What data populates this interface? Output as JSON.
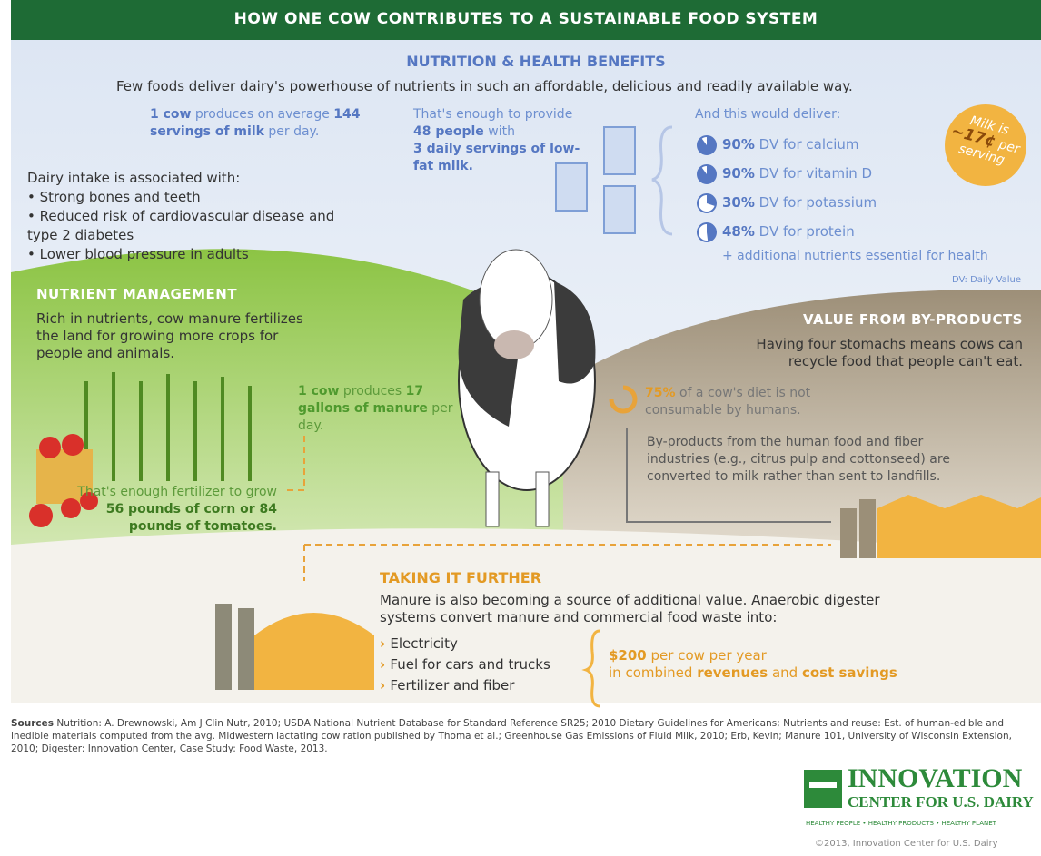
{
  "header": {
    "title": "HOW ONE COW CONTRIBUTES TO A SUSTAINABLE FOOD SYSTEM"
  },
  "nutrition": {
    "title": "NUTRITION & HEALTH BENEFITS",
    "intro": "Few foods deliver dairy's powerhouse of nutrients in such an affordable, delicious and readily available way.",
    "production": {
      "lead": "1 cow",
      "line1": " produces on average",
      "amount": "144 servings of milk",
      "line2": " per day."
    },
    "provide": {
      "line1": "That's enough to provide",
      "people": "48 people",
      "with": " with",
      "servings": "3 daily servings of low-fat milk."
    },
    "deliver": {
      "title": "And this would deliver:",
      "nutrients": [
        {
          "value": 90,
          "label": "90%",
          "text": " DV for calcium"
        },
        {
          "value": 90,
          "label": "90%",
          "text": " DV for vitamin D"
        },
        {
          "value": 30,
          "label": "30%",
          "text": " DV for potassium"
        },
        {
          "value": 48,
          "label": "48%",
          "text": " DV for protein"
        }
      ],
      "additional": "+ additional nutrients essential for health",
      "note": "DV: Daily Value"
    },
    "price": {
      "line1": "Milk is",
      "amount": "~17¢",
      "line2": "per serving"
    }
  },
  "dairy_intake": {
    "title": "Dairy intake is associated with:",
    "items": [
      "Strong bones and teeth",
      "Reduced risk of cardiovascular disease and type 2 diabetes",
      "Lower blood pressure in adults"
    ]
  },
  "nutrient_management": {
    "title": "NUTRIENT MANAGEMENT",
    "text": "Rich in nutrients, cow manure fertilizes the land for growing more crops for people and animals.",
    "production": {
      "lead": "1 cow",
      "line1": " produces",
      "amount": "17 gallons of manure",
      "line2": " per day."
    },
    "fertilizer": {
      "text": "That's enough fertilizer to grow",
      "amount": "56 pounds of corn or 84 pounds of tomatoes."
    }
  },
  "by_products": {
    "title": "VALUE FROM BY-PRODUCTS",
    "text": "Having four stomachs means cows can recycle food that people can't eat.",
    "diet": {
      "value": 75,
      "label": "75%",
      "text": " of a cow's diet is not consumable by humans."
    },
    "reuse": "By-products from the human food and fiber industries (e.g., citrus pulp and cottonseed) are converted to milk rather than sent to landfills."
  },
  "further": {
    "title": "TAKING IT FURTHER",
    "text": "Manure is also becoming a source of additional value. Anaerobic digester systems convert manure and commercial food waste into:",
    "items": [
      "Electricity",
      "Fuel for cars and trucks",
      "Fertilizer and fiber"
    ],
    "revenue": {
      "amount": "$200",
      "line1": " per cow per year",
      "line2": "in combined ",
      "revenues": "revenues",
      "and": " and ",
      "savings": "cost savings"
    }
  },
  "sources": {
    "label": "Sources",
    "text": " Nutrition: A. Drewnowski, Am J Clin Nutr, 2010; USDA National Nutrient Database for Standard Reference SR25; 2010 Dietary Guidelines for Americans; Nutrients and reuse: Est. of human-edible and inedible materials computed from the avg. Midwestern lactating cow ration published by Thoma et al.; Greenhouse Gas Emissions of Fluid Milk, 2010; Erb, Kevin; Manure 101, University of Wisconsin Extension, 2010; Digester: Innovation Center, Case Study: Food Waste, 2013."
  },
  "logo": {
    "name": "INNOVATION",
    "subtitle": "CENTER FOR U.S. DAIRY",
    "tagline": "HEALTHY PEOPLE • HEALTHY PRODUCTS • HEALTHY PLANET",
    "copyright": "©2013, Innovation Center for U.S. Dairy"
  }
}
